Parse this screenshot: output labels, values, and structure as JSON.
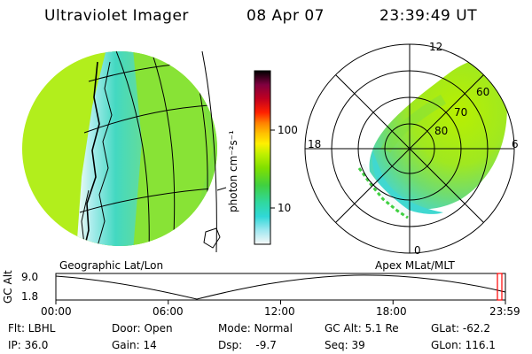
{
  "header": {
    "title": "Ultraviolet Imager",
    "date": "08 Apr 07",
    "time": "23:39:49 UT"
  },
  "left_panel": {
    "caption": "Geographic Lat/Lon"
  },
  "right_panel": {
    "caption": "Apex MLat/MLT",
    "mlt_labels": {
      "top": "12",
      "left": "18",
      "right": "6",
      "bottom": "0"
    },
    "mlat_labels": [
      "60",
      "70",
      "80"
    ]
  },
  "colorbar": {
    "unit": "photon cm⁻²s⁻¹",
    "ticks": [
      "100",
      "10"
    ],
    "colors": [
      "#000000",
      "#400030",
      "#800040",
      "#c00020",
      "#ff2000",
      "#ff8000",
      "#ffc000",
      "#fff000",
      "#c0f000",
      "#80e000",
      "#40d040",
      "#30d8a0",
      "#30d8d8",
      "#a0e8f0",
      "#f8f8f8"
    ]
  },
  "altitude_plot": {
    "ylabel": "GC Alt",
    "y_ticks": [
      "9.0",
      "1.8"
    ],
    "x_ticks": [
      "00:00",
      "06:00",
      "12:00",
      "18:00",
      "23:59"
    ],
    "marker_color": "#ff0000"
  },
  "status": {
    "row1": {
      "flt": "Flt: LBHL",
      "door": "Door: Open",
      "mode": "Mode: Normal",
      "gcalt": "GC Alt: 5.1 Re",
      "glat": "GLat: -62.2"
    },
    "row2": {
      "ip": "IP: 36.0",
      "gain": "Gain: 14",
      "dsp": "Dsp:    -9.7",
      "seq": "Seq: 39",
      "glon": "GLon: 116.1"
    }
  }
}
